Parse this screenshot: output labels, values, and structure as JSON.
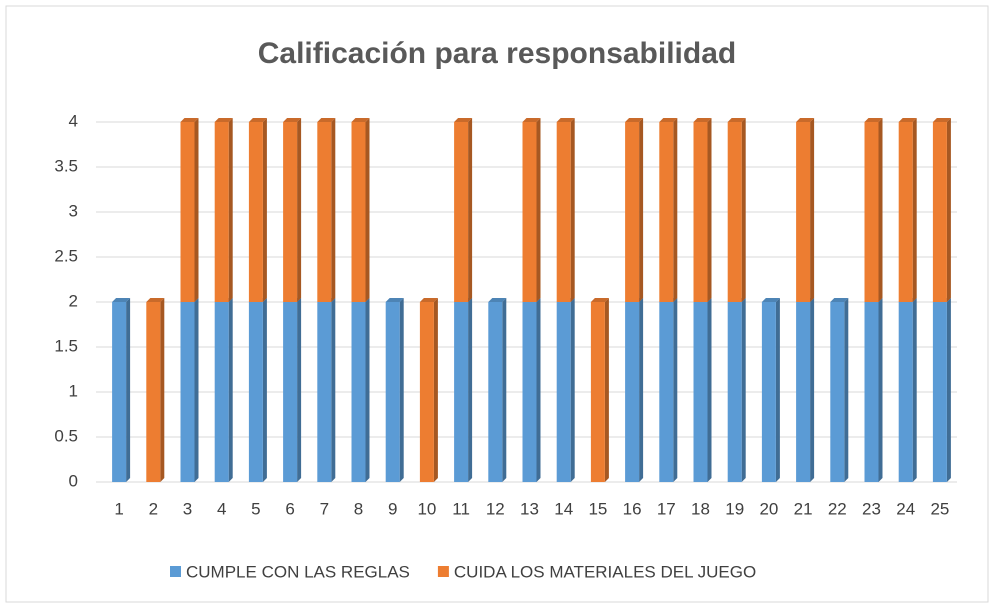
{
  "chart_data": {
    "type": "stacked_bar",
    "title": "Calificación para responsabilidad",
    "categories": [
      "1",
      "2",
      "3",
      "4",
      "5",
      "6",
      "7",
      "8",
      "9",
      "10",
      "11",
      "12",
      "13",
      "14",
      "15",
      "16",
      "17",
      "18",
      "19",
      "20",
      "21",
      "22",
      "23",
      "24",
      "25"
    ],
    "series": [
      {
        "name": "CUMPLE CON LAS REGLAS",
        "color": "#5b9bd5",
        "values": [
          2,
          0,
          2,
          2,
          2,
          2,
          2,
          2,
          2,
          0,
          2,
          2,
          2,
          2,
          0,
          2,
          2,
          2,
          2,
          2,
          2,
          2,
          2,
          2,
          2
        ]
      },
      {
        "name": "CUIDA LOS MATERIALES DEL JUEGO",
        "color": "#ed7d31",
        "values": [
          0,
          2,
          2,
          2,
          2,
          2,
          2,
          2,
          0,
          2,
          2,
          0,
          2,
          2,
          2,
          2,
          2,
          2,
          2,
          0,
          2,
          0,
          2,
          2,
          2
        ]
      }
    ],
    "ylim": [
      0,
      4
    ],
    "yticks": [
      0,
      0.5,
      1,
      1.5,
      2,
      2.5,
      3,
      3.5,
      4
    ],
    "grid": true,
    "legend": "bottom"
  }
}
